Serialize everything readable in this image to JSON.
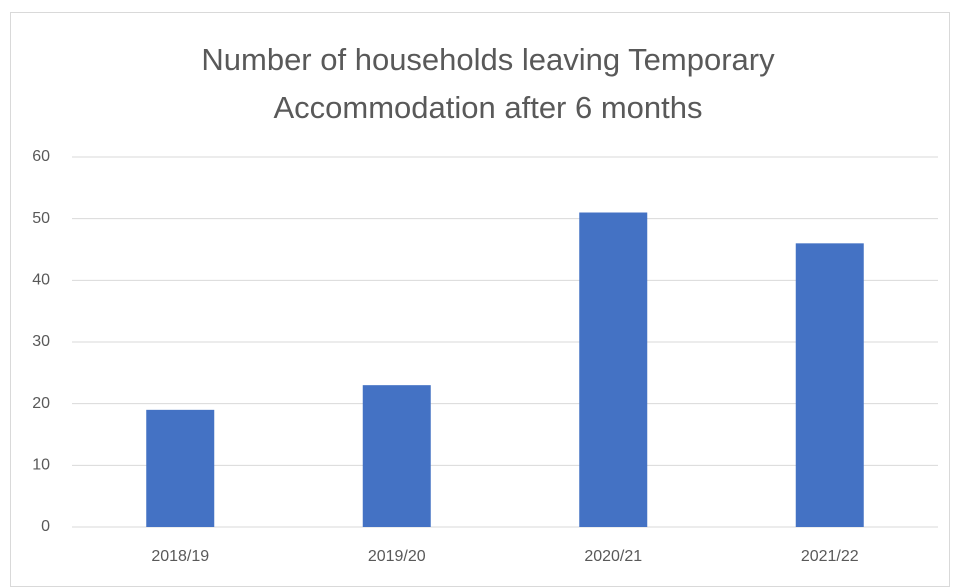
{
  "chart_data": {
    "type": "bar",
    "title": "Number of households leaving Temporary Accommodation after 6 months",
    "categories": [
      "2018/19",
      "2019/20",
      "2020/21",
      "2021/22"
    ],
    "values": [
      19,
      23,
      51,
      46
    ],
    "color": "#4472c4",
    "ylim": [
      0,
      60
    ],
    "yticks": [
      0,
      10,
      20,
      30,
      40,
      50,
      60
    ],
    "grid": true
  }
}
